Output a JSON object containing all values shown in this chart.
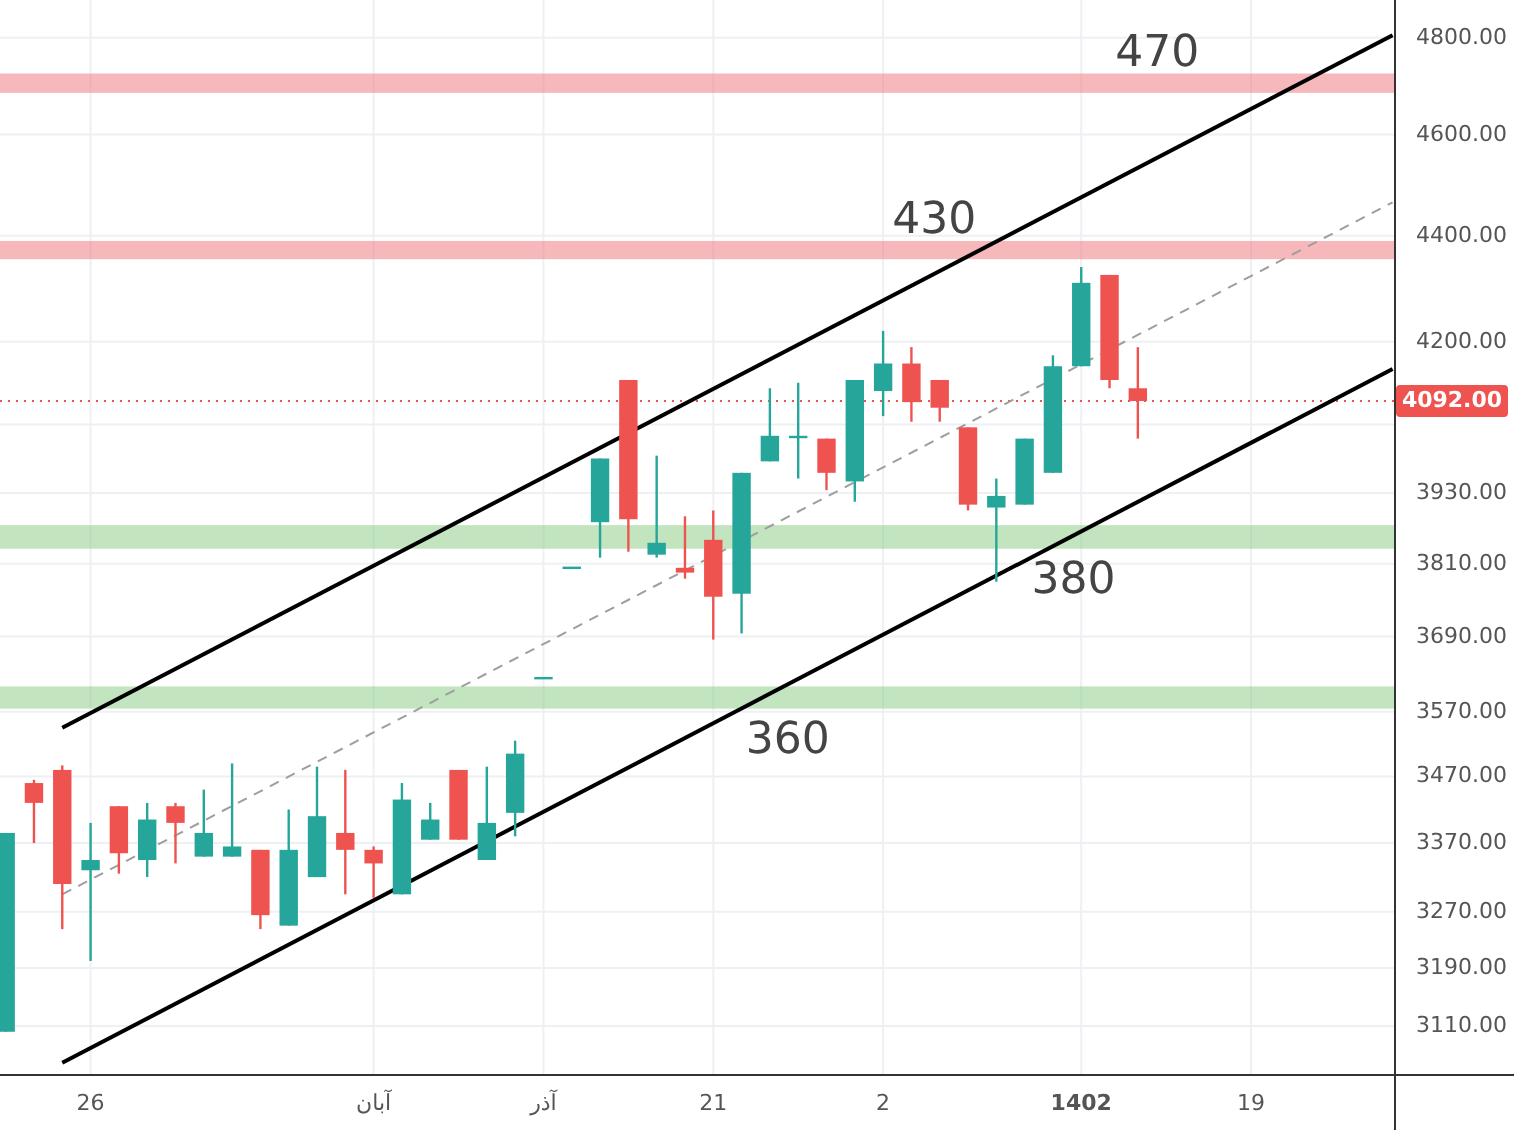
{
  "chart_data": {
    "type": "candlestick",
    "categories": [
      null,
      null,
      null,
      "26",
      null,
      null,
      null,
      null,
      null,
      null,
      null,
      null,
      null,
      "آبان",
      null,
      null,
      null,
      null,
      null,
      "آذر",
      null,
      null,
      null,
      null,
      null,
      "21",
      null,
      null,
      null,
      null,
      null,
      "2",
      null,
      null,
      null,
      null,
      null,
      null,
      "1402",
      null,
      null,
      null,
      null,
      null,
      "19",
      null,
      null,
      null,
      null,
      null
    ],
    "ohlc": [
      [
        3102,
        3385,
        3102,
        3385
      ],
      [
        3460,
        3465,
        3370,
        3430
      ],
      [
        3480,
        3487,
        3245,
        3310
      ],
      [
        3330,
        3400,
        3200,
        3345
      ],
      [
        3425,
        3425,
        3325,
        3355
      ],
      [
        3345,
        3430,
        3320,
        3405
      ],
      [
        3425,
        3430,
        3340,
        3400
      ],
      [
        3350,
        3450,
        3350,
        3385
      ],
      [
        3350,
        3490,
        3350,
        3365
      ],
      [
        3360,
        3360,
        3245,
        3265
      ],
      [
        3250,
        3420,
        3250,
        3360
      ],
      [
        3320,
        3485,
        3320,
        3410
      ],
      [
        3385,
        3480,
        3295,
        3360
      ],
      [
        3360,
        3365,
        3290,
        3340
      ],
      [
        3295,
        3460,
        3295,
        3435
      ],
      [
        3375,
        3430,
        3375,
        3405
      ],
      [
        3480,
        3480,
        3375,
        3375
      ],
      [
        3345,
        3485,
        3345,
        3400
      ],
      [
        3415,
        3525,
        3380,
        3505
      ],
      [
        3625,
        3625,
        3625,
        3625
      ],
      [
        3805,
        3805,
        3805,
        3805
      ],
      [
        3880,
        3990,
        3820,
        3990
      ],
      [
        4130,
        4130,
        3830,
        3885
      ],
      [
        3825,
        3995,
        3820,
        3845
      ],
      [
        3803,
        3890,
        3785,
        3795
      ],
      [
        3850,
        3900,
        3685,
        3755
      ],
      [
        3760,
        3965,
        3695,
        3965
      ],
      [
        3985,
        4115,
        3985,
        4030
      ],
      [
        4030,
        4125,
        3955,
        4030
      ],
      [
        4025,
        4025,
        3935,
        3965
      ],
      [
        3950,
        4130,
        3915,
        4130
      ],
      [
        4110,
        4220,
        4065,
        4160
      ],
      [
        4160,
        4190,
        4055,
        4090
      ],
      [
        4130,
        4130,
        4055,
        4080
      ],
      [
        4045,
        4045,
        3900,
        3910
      ],
      [
        3905,
        3955,
        3780,
        3925
      ],
      [
        3910,
        4025,
        3910,
        4025
      ],
      [
        3965,
        4175,
        3965,
        4155
      ],
      [
        4155,
        4340,
        4155,
        4310
      ],
      [
        4325,
        4325,
        4115,
        4130
      ],
      [
        4115,
        4190,
        4025,
        4092
      ],
      null,
      null,
      null,
      null,
      null,
      null,
      null,
      null,
      null
    ],
    "colors": [
      "#26a69a",
      "#ef5350",
      "#ef5350",
      "#26a69a",
      "#ef5350",
      "#26a69a",
      "#ef5350",
      "#26a69a",
      "#26a69a",
      "#ef5350",
      "#26a69a",
      "#26a69a",
      "#ef5350",
      "#ef5350",
      "#26a69a",
      "#26a69a",
      "#ef5350",
      "#26a69a",
      "#26a69a",
      "#26a69a",
      "#26a69a",
      "#26a69a",
      "#ef5350",
      "#26a69a",
      "#ef5350",
      "#ef5350",
      "#26a69a",
      "#26a69a",
      "#26a69a",
      "#ef5350",
      "#26a69a",
      "#26a69a",
      "#ef5350",
      "#ef5350",
      "#ef5350",
      "#26a69a",
      "#26a69a",
      "#26a69a",
      "#26a69a",
      "#ef5350",
      "#ef5350",
      null,
      null,
      null,
      null,
      null,
      null,
      null,
      null,
      null
    ],
    "series": [
      {
        "type": "line",
        "color": "#000000",
        "line_style": "solid",
        "values": [
          null,
          null,
          3545,
          null,
          null,
          null,
          null,
          null,
          null,
          null,
          null,
          null,
          null,
          null,
          null,
          null,
          null,
          null,
          null,
          null,
          null,
          null,
          null,
          null,
          null,
          null,
          null,
          null,
          null,
          null,
          null,
          null,
          null,
          null,
          null,
          null,
          null,
          null,
          null,
          null,
          null,
          null,
          null,
          null,
          null,
          null,
          null,
          null,
          null,
          4805
        ]
      },
      {
        "type": "line",
        "color": "#9e9e9e",
        "line_style": "dashed",
        "values": [
          null,
          null,
          3295,
          null,
          null,
          null,
          null,
          null,
          null,
          null,
          null,
          null,
          null,
          null,
          null,
          null,
          null,
          null,
          null,
          null,
          null,
          null,
          null,
          null,
          null,
          null,
          null,
          null,
          null,
          null,
          null,
          null,
          null,
          null,
          null,
          null,
          null,
          null,
          null,
          null,
          null,
          null,
          null,
          null,
          null,
          null,
          null,
          null,
          null,
          4465
        ]
      },
      {
        "type": "line",
        "color": "#000000",
        "line_style": "solid",
        "values": [
          null,
          null,
          3060,
          null,
          null,
          null,
          null,
          null,
          null,
          null,
          null,
          null,
          null,
          null,
          null,
          null,
          null,
          null,
          null,
          null,
          null,
          null,
          null,
          null,
          null,
          null,
          null,
          null,
          null,
          null,
          null,
          null,
          null,
          null,
          null,
          null,
          null,
          null,
          null,
          null,
          null,
          null,
          null,
          null,
          null,
          null,
          null,
          null,
          null,
          4150
        ]
      }
    ],
    "log": true,
    "ylim": [
      3045,
      4880
    ],
    "yticks": [
      {
        "value": 3110,
        "label": "3110.00"
      },
      {
        "value": 3190,
        "label": "3190.00"
      },
      {
        "value": 3270,
        "label": "3270.00"
      },
      {
        "value": 3370,
        "label": "3370.00"
      },
      {
        "value": 3470,
        "label": "3470.00"
      },
      {
        "value": 3570,
        "label": "3570.00"
      },
      {
        "value": 3690,
        "label": "3690.00"
      },
      {
        "value": 3810,
        "label": "3810.00"
      },
      {
        "value": 3930,
        "label": "3930.00"
      },
      {
        "value": 4050,
        "label": null
      },
      {
        "value": 4200,
        "label": "4200.00"
      },
      {
        "value": 4400,
        "label": "4400.00"
      },
      {
        "value": 4600,
        "label": "4600.00"
      },
      {
        "value": 4800,
        "label": "4800.00"
      }
    ],
    "grid": true,
    "ref_lines": [
      {
        "axis": "y",
        "value": 4092,
        "label": "4092.00",
        "color": "#ef5350",
        "line_style": "dotted"
      }
    ],
    "bands": [
      {
        "axis": "y",
        "from": 4685,
        "to": 4725,
        "label": "470",
        "color": "#f07e84"
      },
      {
        "axis": "y",
        "from": 4355,
        "to": 4390,
        "label": "430",
        "color": "#f07e84"
      },
      {
        "axis": "y",
        "from": 3835,
        "to": 3875,
        "label": "380",
        "color": "#8fcd8a"
      },
      {
        "axis": "y",
        "from": 3575,
        "to": 3610,
        "label": "360",
        "color": "#8fcd8a"
      }
    ]
  }
}
